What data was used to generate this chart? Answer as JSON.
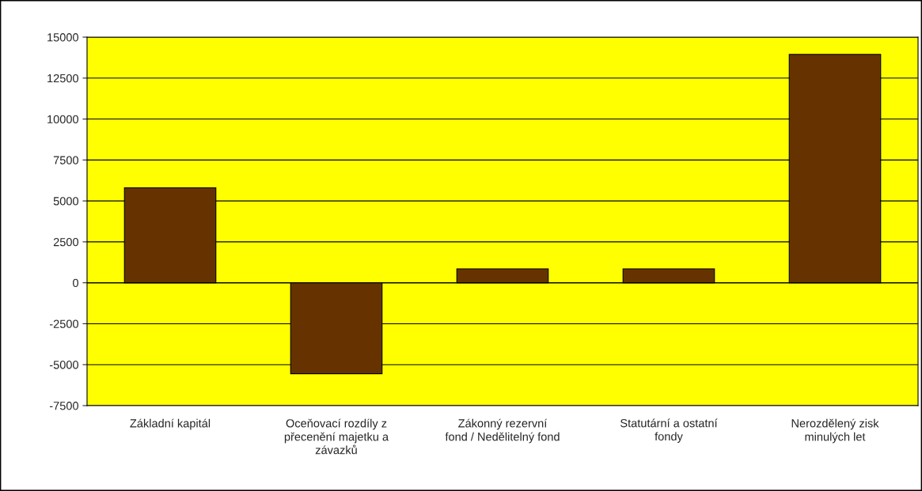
{
  "chart_data": {
    "type": "bar",
    "categories": [
      "Základní kapitál",
      "Oceňovací rozdíly z\npřecenění majetku a\nzávazků",
      "Zákonný rezervní\nfond / Nedělitelný fond",
      "Statutární a ostatní\nfondy",
      "Nerozdělený zisk\nminulých let"
    ],
    "values": [
      5800,
      -5550,
      850,
      850,
      13950
    ],
    "color": "#663300",
    "ylim": [
      -7500,
      15000
    ],
    "yticks": [
      -7500,
      -5000,
      -2500,
      0,
      2500,
      5000,
      7500,
      10000,
      12500,
      15000
    ],
    "grid": "y"
  }
}
